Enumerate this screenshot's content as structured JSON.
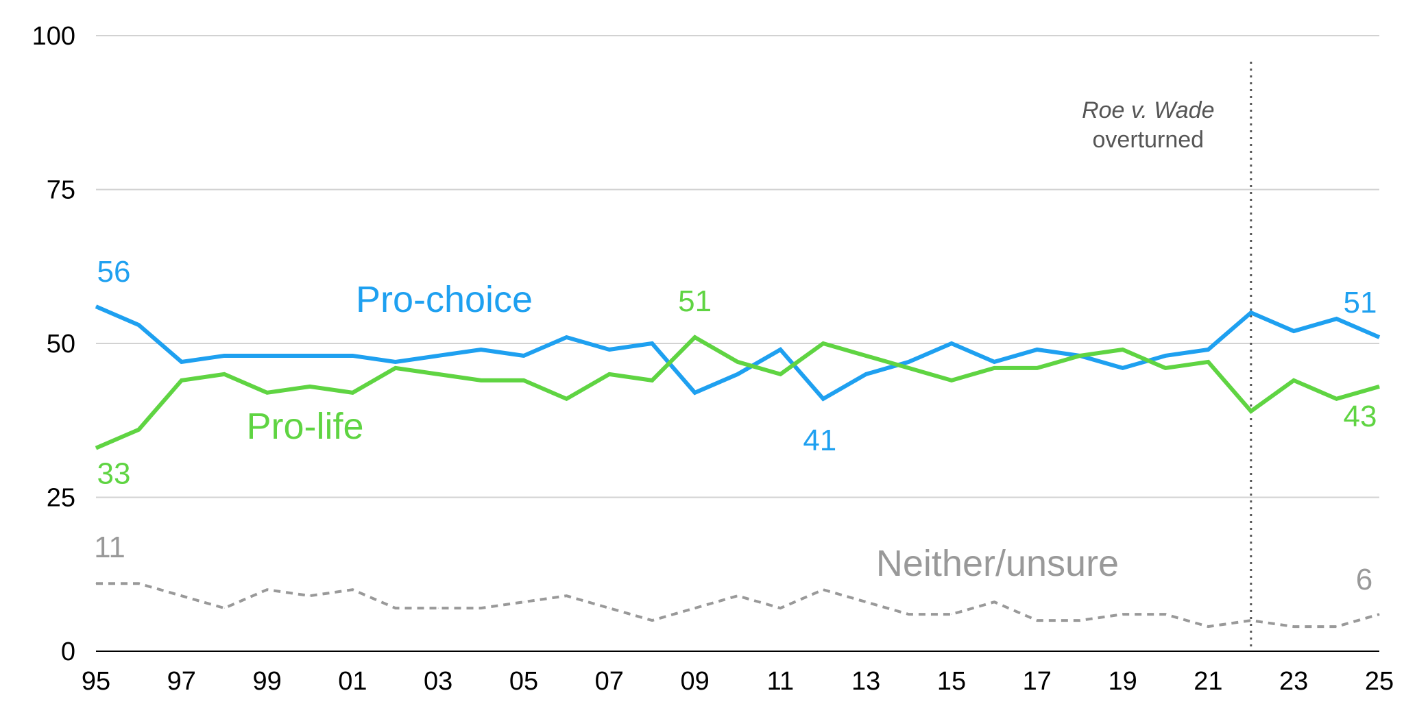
{
  "colors": {
    "pro_choice": "#1ea0f0",
    "pro_life": "#5fd442",
    "neither": "#999999",
    "annotation_line": "#555555"
  },
  "chart_data": {
    "type": "line",
    "title": "",
    "xlabel": "",
    "ylabel": "",
    "ylim": [
      0,
      100
    ],
    "yticks": [
      0,
      25,
      50,
      75,
      100
    ],
    "x": [
      1995,
      1996,
      1997,
      1998,
      1999,
      2000,
      2001,
      2002,
      2003,
      2004,
      2005,
      2006,
      2007,
      2008,
      2009,
      2010,
      2011,
      2012,
      2013,
      2014,
      2015,
      2016,
      2017,
      2018,
      2019,
      2020,
      2021,
      2022,
      2023,
      2024,
      2025
    ],
    "xlim": [
      1995,
      2025
    ],
    "xticks": [
      1995,
      1997,
      1999,
      2001,
      2003,
      2005,
      2007,
      2009,
      2011,
      2013,
      2015,
      2017,
      2019,
      2021,
      2023,
      2025
    ],
    "xtick_labels": [
      "95",
      "97",
      "99",
      "01",
      "03",
      "05",
      "07",
      "09",
      "11",
      "13",
      "15",
      "17",
      "19",
      "21",
      "23",
      "25"
    ],
    "series": [
      {
        "name": "Pro-choice",
        "label": "Pro-choice",
        "color_key": "pro_choice",
        "dashed": false,
        "values": [
          56,
          53,
          47,
          48,
          48,
          48,
          48,
          47,
          48,
          49,
          48,
          51,
          49,
          50,
          42,
          45,
          49,
          41,
          45,
          47,
          50,
          47,
          49,
          48,
          46,
          48,
          49,
          55,
          52,
          54,
          51
        ]
      },
      {
        "name": "Pro-life",
        "label": "Pro-life",
        "color_key": "pro_life",
        "dashed": false,
        "values": [
          33,
          36,
          44,
          45,
          42,
          43,
          42,
          46,
          45,
          44,
          44,
          41,
          45,
          44,
          51,
          47,
          45,
          50,
          48,
          46,
          44,
          46,
          46,
          48,
          49,
          46,
          47,
          39,
          44,
          41,
          43
        ]
      },
      {
        "name": "Neither/unsure",
        "label": "Neither/unsure",
        "color_key": "neither",
        "dashed": true,
        "values": [
          11,
          11,
          9,
          7,
          10,
          9,
          10,
          7,
          7,
          7,
          8,
          9,
          7,
          5,
          7,
          9,
          7,
          10,
          8,
          6,
          6,
          8,
          5,
          5,
          6,
          6,
          4,
          5,
          4,
          4,
          6
        ]
      }
    ],
    "data_labels": [
      {
        "text": "56",
        "series": 0,
        "x": 1995
      },
      {
        "text": "51",
        "series": 0,
        "x": 2025
      },
      {
        "text": "41",
        "series": 0,
        "x": 2012
      },
      {
        "text": "33",
        "series": 1,
        "x": 1995
      },
      {
        "text": "51",
        "series": 1,
        "x": 2009
      },
      {
        "text": "43",
        "series": 1,
        "x": 2025
      },
      {
        "text": "11",
        "series": 2,
        "x": 1995
      },
      {
        "text": "6",
        "series": 2,
        "x": 2025
      }
    ],
    "annotation": {
      "x": 2022,
      "line1": "Roe v. Wade",
      "line2": "overturned"
    }
  }
}
